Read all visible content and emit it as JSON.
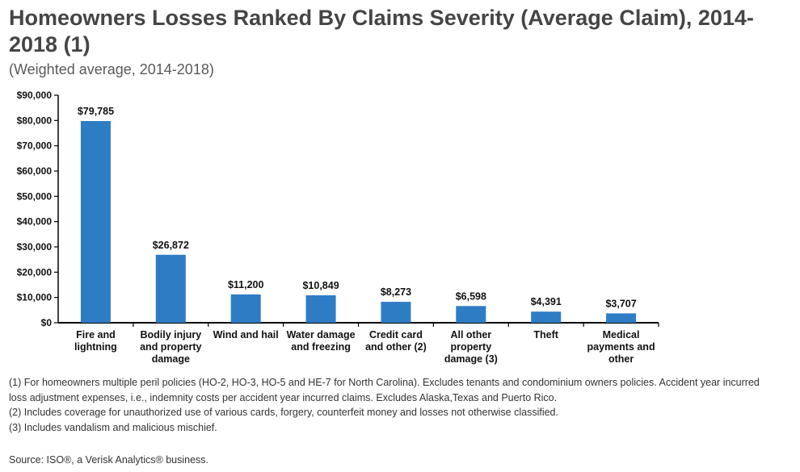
{
  "title": "Homeowners Losses Ranked By Claims Severity (Average Claim), 2014-2018 (1)",
  "subtitle": "(Weighted average, 2014-2018)",
  "chart_data": {
    "type": "bar",
    "title": "Homeowners Losses Ranked By Claims Severity (Average Claim), 2014-2018 (1)",
    "xlabel": "",
    "ylabel": "",
    "ylim": [
      0,
      90000
    ],
    "yticks": [
      0,
      10000,
      20000,
      30000,
      40000,
      50000,
      60000,
      70000,
      80000,
      90000
    ],
    "ytick_labels": [
      "$0",
      "$10,000",
      "$20,000",
      "$30,000",
      "$40,000",
      "$50,000",
      "$60,000",
      "$70,000",
      "$80,000",
      "$90,000"
    ],
    "categories": [
      [
        "Fire and",
        "lightning"
      ],
      [
        "Bodily injury",
        "and property",
        "damage"
      ],
      [
        "Wind and hail"
      ],
      [
        "Water damage",
        "and freezing"
      ],
      [
        "Credit card",
        "and other (2)"
      ],
      [
        "All other",
        "property",
        "damage (3)"
      ],
      [
        "Theft"
      ],
      [
        "Medical",
        "payments and",
        "other"
      ]
    ],
    "values": [
      79785,
      26872,
      11200,
      10849,
      8273,
      6598,
      4391,
      3707
    ],
    "value_labels": [
      "$79,785",
      "$26,872",
      "$11,200",
      "$10,849",
      "$8,273",
      "$6,598",
      "$4,391",
      "$3,707"
    ],
    "bar_color": "#2e7cc4",
    "grid": false
  },
  "footnotes": [
    "(1) For homeowners multiple peril policies (HO-2, HO-3, HO-5 and HE-7 for North Carolina). Excludes tenants and condominium owners policies. Accident year incurred",
    "loss adjustment expenses, i.e., indemnity costs per accident year incurred claims. Excludes Alaska,Texas and Puerto Rico.",
    "(2) Includes coverage for unauthorized use of various cards, forgery, counterfeit money and losses not otherwise classified.",
    "(3) Includes vandalism and malicious mischief."
  ],
  "source": "Source: ISO®, a Verisk Analytics® business."
}
